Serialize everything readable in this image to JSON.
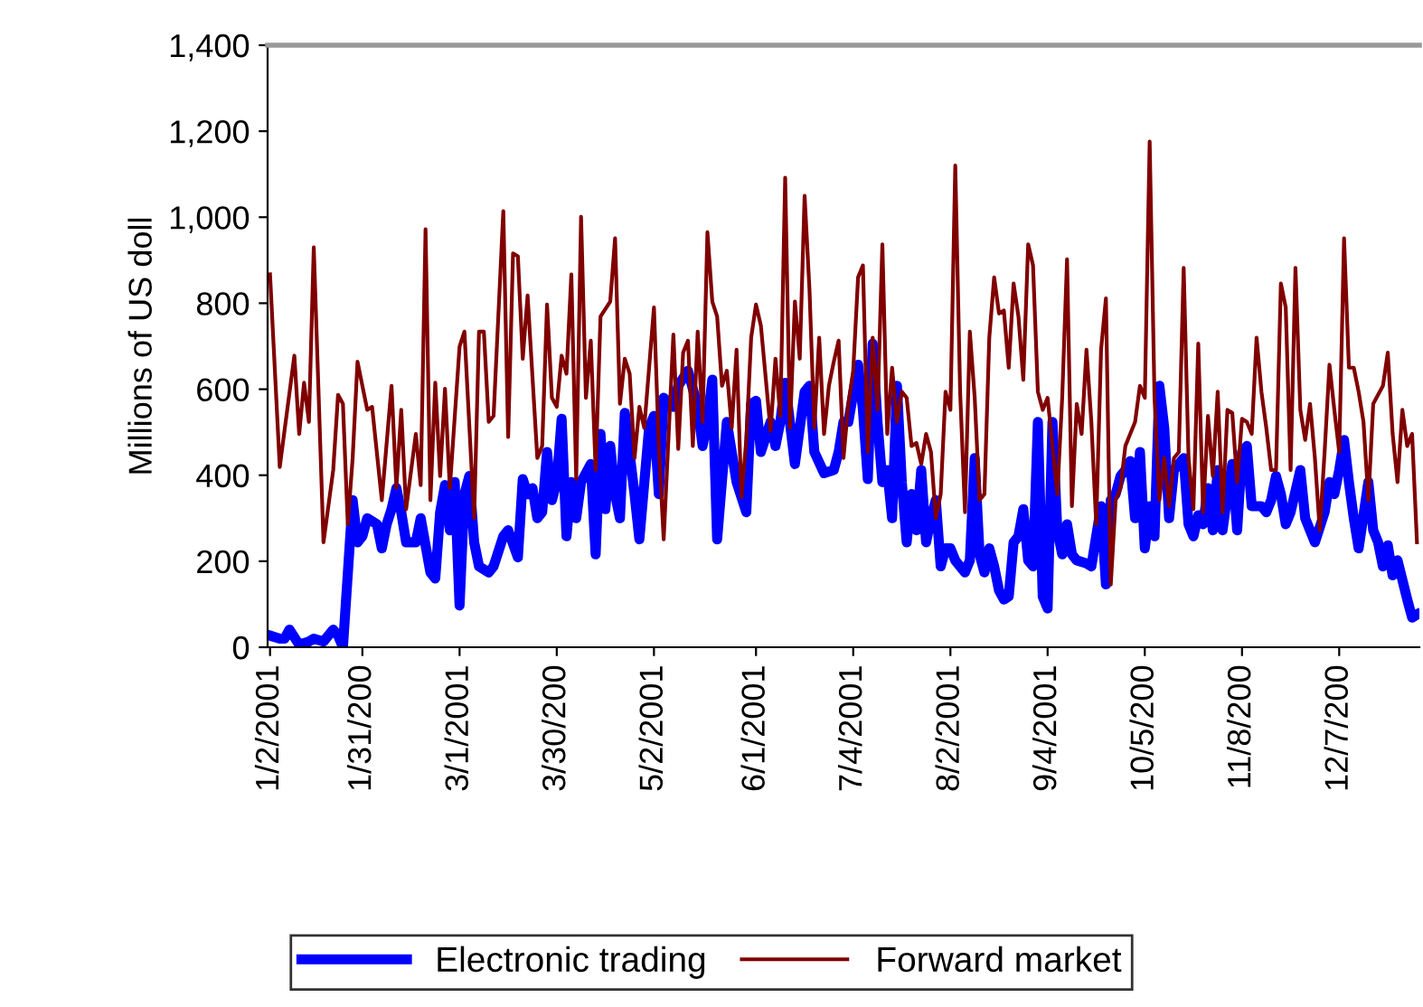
{
  "chart_data": {
    "type": "line",
    "ylabel": "Millions of US doll",
    "categories": [
      "1/2/2001",
      null,
      null,
      null,
      null,
      null,
      null,
      null,
      null,
      null,
      null,
      null,
      null,
      null,
      null,
      null,
      null,
      null,
      null,
      "1/31/200",
      null,
      null,
      null,
      null,
      null,
      null,
      null,
      null,
      null,
      null,
      null,
      null,
      null,
      null,
      null,
      null,
      null,
      null,
      null,
      "3/1/2001",
      null,
      null,
      null,
      null,
      null,
      null,
      null,
      null,
      null,
      null,
      null,
      null,
      null,
      null,
      null,
      null,
      null,
      null,
      null,
      "3/30/200",
      null,
      null,
      null,
      null,
      null,
      null,
      null,
      null,
      null,
      null,
      null,
      null,
      null,
      null,
      null,
      null,
      null,
      null,
      null,
      "5/2/2001",
      null,
      null,
      null,
      null,
      null,
      null,
      null,
      null,
      null,
      null,
      null,
      null,
      null,
      null,
      null,
      null,
      null,
      null,
      null,
      null,
      "6/1/2001",
      null,
      null,
      null,
      null,
      null,
      null,
      null,
      null,
      null,
      null,
      null,
      null,
      null,
      null,
      null,
      null,
      null,
      null,
      null,
      "7/4/2001",
      null,
      null,
      null,
      null,
      null,
      null,
      null,
      null,
      null,
      null,
      null,
      null,
      null,
      null,
      null,
      null,
      null,
      null,
      null,
      "8/2/2001",
      null,
      null,
      null,
      null,
      null,
      null,
      null,
      null,
      null,
      null,
      null,
      null,
      null,
      null,
      null,
      null,
      null,
      null,
      null,
      "9/4/2001",
      null,
      null,
      null,
      null,
      null,
      null,
      null,
      null,
      null,
      null,
      null,
      null,
      null,
      null,
      null,
      null,
      null,
      null,
      null,
      "10/5/200",
      null,
      null,
      null,
      null,
      null,
      null,
      null,
      null,
      null,
      null,
      null,
      null,
      null,
      null,
      null,
      null,
      null,
      null,
      null,
      "11/8/200",
      null,
      null,
      null,
      null,
      null,
      null,
      null,
      null,
      null,
      null,
      null,
      null,
      null,
      null,
      null,
      null,
      null,
      null,
      null,
      "12/7/200",
      null,
      null,
      null,
      null,
      null,
      null,
      null,
      null,
      null,
      null,
      null,
      null,
      null,
      null,
      null,
      null
    ],
    "ylim": [
      0,
      1400
    ],
    "yticks": [
      0,
      200,
      400,
      600,
      800,
      {
        "value": 1000,
        "label": "1,000"
      },
      {
        "value": 1200,
        "label": "1,200"
      },
      {
        "value": 1400,
        "label": "1,400"
      }
    ],
    "grid": false,
    "legend": "bottom",
    "marker": "none",
    "line_style": "solid",
    "series": [
      {
        "name": "Electronic trading",
        "color": "#0000ff",
        "values": [
          27,
          null,
          20,
          20,
          41,
          null,
          6,
          null,
          13,
          20,
          null,
          13,
          null,
          41,
          27,
          0,
          null,
          342,
          244,
          258,
          300,
          null,
          286,
          230,
          286,
          321,
          370,
          314,
          244,
          null,
          244,
          300,
          null,
          174,
          160,
          314,
          377,
          272,
          384,
          97,
          356,
          398,
          244,
          188,
          null,
          174,
          188,
          null,
          258,
          272,
          null,
          209,
          391,
          356,
          370,
          300,
          314,
          454,
          342,
          384,
          531,
          258,
          384,
          300,
          384,
          null,
          426,
          216,
          496,
          321,
          468,
          356,
          300,
          545,
          null,
          356,
          251,
          null,
          510,
          538,
          356,
          580,
          null,
          559,
          608,
          null,
          643,
          null,
          559,
          468,
          524,
          622,
          251,
          null,
          524,
          454,
          384,
          null,
          314,
          566,
          573,
          454,
          null,
          524,
          468,
          524,
          615,
          null,
          426,
          null,
          594,
          608,
          454,
          null,
          405,
          null,
          412,
          454,
          524,
          524,
          null,
          657,
          552,
          391,
          706,
          524,
          384,
          412,
          300,
          608,
          384,
          244,
          356,
          272,
          412,
          244,
          300,
          342,
          188,
          230,
          230,
          202,
          null,
          174,
          202,
          440,
          216,
          174,
          230,
          188,
          132,
          111,
          118,
          244,
          258,
          321,
          202,
          188,
          524,
          118,
          90,
          524,
          272,
          216,
          286,
          216,
          202,
          null,
          195,
          188,
          null,
          328,
          146,
          342,
          356,
          398,
          412,
          433,
          300,
          454,
          230,
          328,
          258,
          608,
          510,
          300,
          412,
          426,
          440,
          286,
          258,
          307,
          286,
          370,
          272,
          412,
          272,
          356,
          426,
          272,
          454,
          468,
          328,
          null,
          328,
          314,
          342,
          398,
          356,
          286,
          314,
          null,
          412,
          300,
          272,
          244,
          null,
          314,
          384,
          356,
          412,
          482,
          384,
          300,
          230,
          null,
          384,
          272,
          244,
          188,
          237,
          167,
          202,
          null,
          111,
          69,
          76
        ]
      },
      {
        "name": "Forward market",
        "color": "#800000",
        "values": [
          867,
          null,
          419,
          null,
          null,
          678,
          496,
          615,
          524,
          930,
          null,
          244,
          null,
          412,
          587,
          566,
          286,
          440,
          664,
          null,
          552,
          559,
          null,
          342,
          null,
          608,
          370,
          552,
          321,
          null,
          496,
          377,
          972,
          342,
          615,
          398,
          601,
          370,
          null,
          699,
          734,
          null,
          300,
          734,
          734,
          524,
          538,
          null,
          1014,
          489,
          916,
          909,
          671,
          818,
          null,
          440,
          468,
          797,
          580,
          559,
          678,
          636,
          867,
          391,
          1001,
          580,
          713,
          412,
          769,
          null,
          804,
          951,
          566,
          671,
          636,
          440,
          559,
          510,
          null,
          790,
          468,
          251,
          null,
          727,
          461,
          685,
          713,
          468,
          734,
          524,
          965,
          804,
          769,
          608,
          643,
          510,
          692,
          349,
          482,
          720,
          797,
          748,
          null,
          503,
          671,
          538,
          1092,
          510,
          804,
          671,
          1050,
          832,
          510,
          720,
          496,
          608,
          664,
          713,
          440,
          566,
          643,
          860,
          888,
          454,
          720,
          552,
          937,
          496,
          650,
          524,
          594,
          580,
          468,
          475,
          426,
          496,
          454,
          300,
          356,
          594,
          552,
          1120,
          594,
          314,
          734,
          580,
          342,
          356,
          720,
          860,
          776,
          783,
          650,
          846,
          769,
          622,
          937,
          888,
          594,
          552,
          580,
          468,
          356,
          580,
          902,
          328,
          566,
          496,
          692,
          524,
          286,
          692,
          811,
          146,
          342,
          370,
          468,
          496,
          524,
          608,
          580,
          1176,
          580,
          342,
          440,
          328,
          440,
          454,
          882,
          440,
          321,
          706,
          314,
          538,
          398,
          594,
          314,
          552,
          545,
          384,
          531,
          524,
          496,
          720,
          594,
          510,
          412,
          412,
          846,
          790,
          412,
          882,
          552,
          482,
          566,
          440,
          272,
          454,
          657,
          552,
          454,
          951,
          650,
          650,
          594,
          524,
          342,
          566,
          587,
          608,
          685,
          496,
          384,
          552,
          468,
          496,
          244
        ]
      }
    ]
  }
}
